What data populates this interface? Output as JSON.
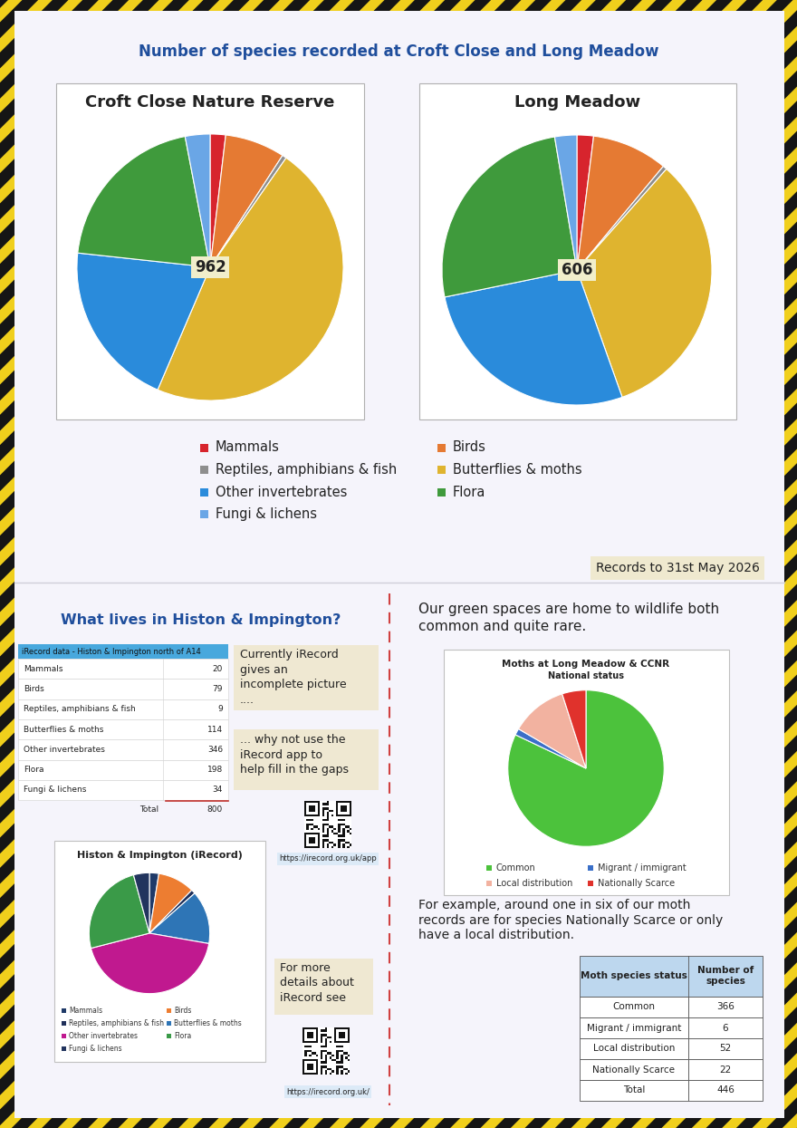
{
  "header": {
    "title": "Number of species recorded at Croft Close and Long Meadow",
    "note": "Records to 31st May 2026"
  },
  "chart_data": [
    {
      "type": "pie",
      "title": "Croft Close Nature Reserve",
      "total": 962,
      "categories": [
        "Mammals",
        "Birds",
        "Reptiles, amphibians & fish",
        "Butterflies & moths",
        "Other invertebrates",
        "Flora",
        "Fungi & lichens"
      ],
      "values": [
        18,
        70,
        5,
        450,
        195,
        195,
        29
      ],
      "colors": [
        "#d7242d",
        "#e57a33",
        "#8e8e8e",
        "#dfb42f",
        "#2a8bdb",
        "#3f9a3c",
        "#6aa6e6"
      ]
    },
    {
      "type": "pie",
      "title": "Long Meadow",
      "total": 606,
      "categories": [
        "Mammals",
        "Birds",
        "Reptiles, amphibians & fish",
        "Butterflies & moths",
        "Other invertebrates",
        "Flora",
        "Fungi & lichens"
      ],
      "values": [
        12,
        55,
        3,
        200,
        165,
        155,
        16
      ],
      "colors": [
        "#d7242d",
        "#e57a33",
        "#8e8e8e",
        "#dfb42f",
        "#2a8bdb",
        "#3f9a3c",
        "#6aa6e6"
      ]
    },
    {
      "type": "pie",
      "title": "Histon & Impington (iRecord)",
      "categories": [
        "Mammals",
        "Birds",
        "Reptiles, amphibians & fish",
        "Butterflies & moths",
        "Other invertebrates",
        "Flora",
        "Fungi & lichens"
      ],
      "values": [
        20,
        79,
        9,
        114,
        346,
        198,
        34
      ],
      "colors": [
        "#1f3a68",
        "#ed7d31",
        "#20305a",
        "#2e75b6",
        "#c0198f",
        "#3a9a48",
        "#22345e"
      ]
    },
    {
      "type": "pie",
      "title": "Moths at Long Meadow & CCNR",
      "subtitle": "National status",
      "categories": [
        "Common",
        "Migrant / immigrant",
        "Local distribution",
        "Nationally Scarce"
      ],
      "values": [
        366,
        6,
        52,
        22
      ],
      "colors": [
        "#4cc23c",
        "#3a6fc8",
        "#f2b2a0",
        "#e0322c"
      ]
    }
  ],
  "histon_section": {
    "heading": "What lives in Histon & Impington?",
    "table": {
      "title": "iRecord data - Histon & Impington north of A14",
      "rows": [
        [
          "Mammals",
          20
        ],
        [
          "Birds",
          79
        ],
        [
          "Reptiles, amphibians & fish",
          9
        ],
        [
          "Butterflies & moths",
          114
        ],
        [
          "Other invertebrates",
          346
        ],
        [
          "Flora",
          198
        ],
        [
          "Fungi & lichens",
          34
        ]
      ],
      "total": [
        "Total",
        800
      ]
    },
    "callouts": [
      "Currently iRecord\ngives an\nincomplete picture\n....",
      "... why not use the\niRecord app to\nhelp fill in the gaps",
      "For more\ndetails about\niRecord see"
    ],
    "links": [
      "https://irecord.org.uk/app",
      "https://irecord.org.uk/"
    ]
  },
  "moth_section": {
    "intro": "Our green spaces are home to wildlife both\ncommon and quite rare.",
    "text": "For example, around one in six of our moth\nrecords are for species Nationally Scarce or only\nhave a local distribution.",
    "table": {
      "columns": [
        "Moth species status",
        "Number of species"
      ],
      "rows": [
        [
          "Common",
          366
        ],
        [
          "Migrant / immigrant",
          6
        ],
        [
          "Local distribution",
          52
        ],
        [
          "Nationally Scarce",
          22
        ]
      ],
      "total": [
        "Total",
        446
      ]
    }
  }
}
